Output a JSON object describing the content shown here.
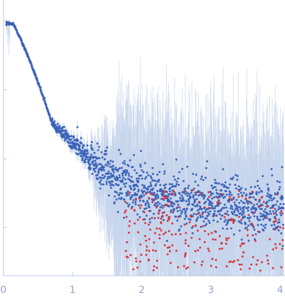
{
  "chart_data": {
    "type": "scatter",
    "title": "",
    "xlabel": "",
    "ylabel": "",
    "xlim": [
      0,
      4.05
    ],
    "x_ticks": [
      0,
      1,
      2,
      3,
      4
    ],
    "x_tick_labels": [
      "0",
      "1",
      "2",
      "3",
      "4"
    ],
    "y_log_scale": true,
    "y_ticks_shown_without_labels": 4,
    "grid": false,
    "legend": "none",
    "colors": {
      "points": "#3a63b8",
      "outliers": "#d8343a",
      "error_bars": "#c5d4ec",
      "axis": "#b9c6e0",
      "tick_labels": "#8fa3c9"
    },
    "profile_summary": {
      "q_start": 0.04,
      "plateau_end_q": 0.15,
      "steep_decay_end_q": 1.5,
      "noise_floor_start_q": 1.7,
      "q_end": 4.05
    }
  }
}
